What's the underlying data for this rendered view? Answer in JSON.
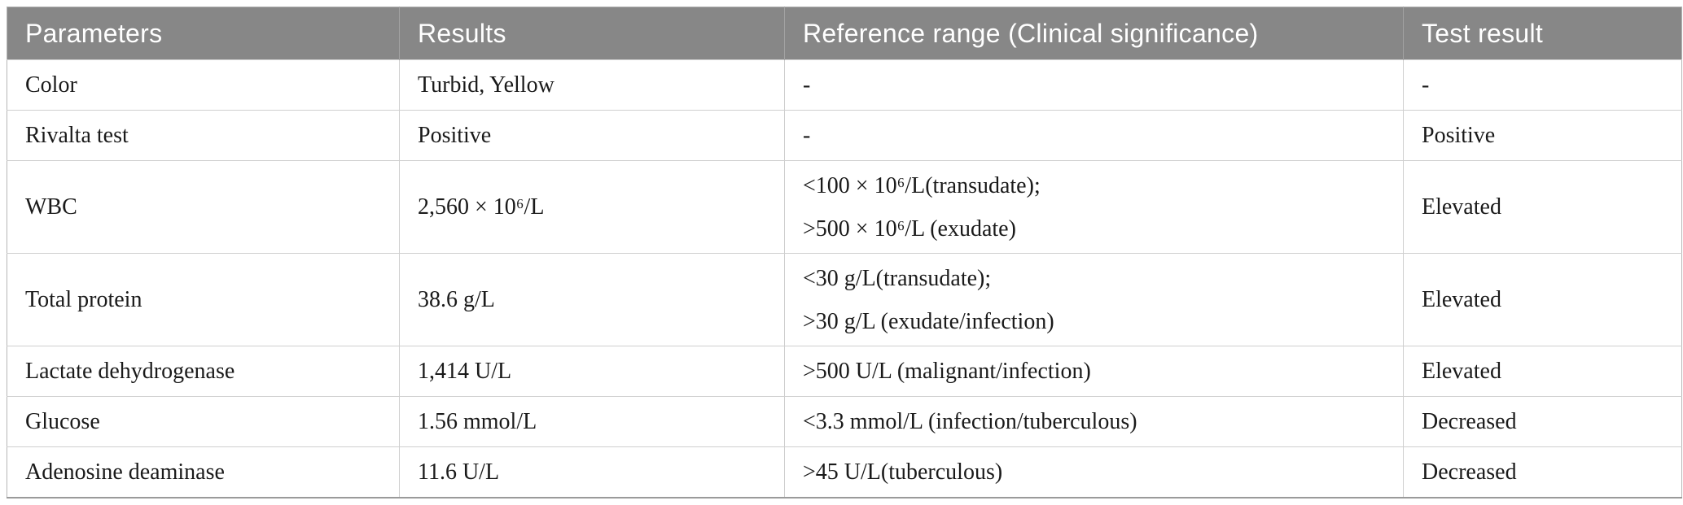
{
  "colors": {
    "header_bg": "#878787",
    "header_text": "#ffffff",
    "body_text": "#1a1a1a",
    "grid_line": "#cfcfcf",
    "header_divider": "#a2a2a2",
    "outer_border": "#b6b6b6",
    "bottom_border": "#9a9a9a"
  },
  "table": {
    "columns": [
      "Parameters",
      "Results",
      "Reference range (Clinical significance)",
      "Test result"
    ],
    "rows": [
      {
        "parameter": "Color",
        "result": "Turbid, Yellow",
        "reference_lines": [
          "-"
        ],
        "test_result": "-"
      },
      {
        "parameter": "Rivalta test",
        "result": "Positive",
        "reference_lines": [
          "-"
        ],
        "test_result": "Positive"
      },
      {
        "parameter": "WBC",
        "result": "2,560 × 10⁶/L",
        "reference_lines": [
          "<100 × 10⁶/L(transudate);",
          ">500 × 10⁶/L (exudate)"
        ],
        "test_result": "Elevated"
      },
      {
        "parameter": "Total protein",
        "result": "38.6 g/L",
        "reference_lines": [
          "<30 g/L(transudate);",
          ">30 g/L (exudate/infection)"
        ],
        "test_result": "Elevated"
      },
      {
        "parameter": "Lactate dehydrogenase",
        "result": "1,414 U/L",
        "reference_lines": [
          ">500 U/L (malignant/infection)"
        ],
        "test_result": "Elevated"
      },
      {
        "parameter": "Glucose",
        "result": "1.56 mmol/L",
        "reference_lines": [
          "<3.3 mmol/L (infection/tuberculous)"
        ],
        "test_result": "Decreased"
      },
      {
        "parameter": "Adenosine deaminase",
        "result": "11.6 U/L",
        "reference_lines": [
          ">45 U/L(tuberculous)"
        ],
        "test_result": "Decreased"
      }
    ]
  }
}
